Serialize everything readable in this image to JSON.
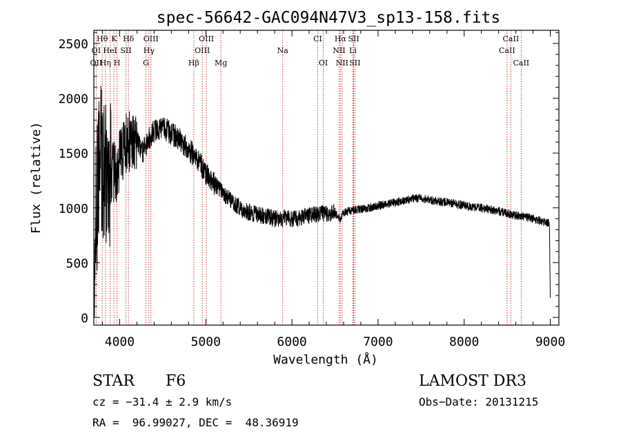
{
  "chart_data": {
    "type": "line",
    "title": "spec-56642-GAC094N47V3_sp13-158.fits",
    "xlabel": "Wavelength (Å)",
    "ylabel": "Flux (relative)",
    "xlim": [
      3700,
      9100
    ],
    "ylim": [
      -70,
      2620
    ],
    "x_ticks": [
      4000,
      5000,
      6000,
      7000,
      8000,
      9000
    ],
    "x_tick_labels": [
      "4000",
      "5000",
      "6000",
      "7000",
      "8000",
      "9000"
    ],
    "y_ticks": [
      0,
      500,
      1000,
      1500,
      2000,
      2500
    ],
    "y_tick_labels": [
      "0",
      "500",
      "1000",
      "1500",
      "2000",
      "2500"
    ],
    "line_color": "#000000",
    "marker_color": "#b22222",
    "spectrum_anchors": [
      [
        3700,
        50
      ],
      [
        3720,
        800
      ],
      [
        3750,
        1300
      ],
      [
        3780,
        1450
      ],
      [
        3800,
        1350
      ],
      [
        3850,
        1300
      ],
      [
        3900,
        1350
      ],
      [
        3950,
        1300
      ],
      [
        4000,
        1450
      ],
      [
        4050,
        1550
      ],
      [
        4100,
        1620
      ],
      [
        4150,
        1640
      ],
      [
        4200,
        1640
      ],
      [
        4260,
        1500
      ],
      [
        4300,
        1560
      ],
      [
        4350,
        1640
      ],
      [
        4400,
        1700
      ],
      [
        4500,
        1740
      ],
      [
        4600,
        1680
      ],
      [
        4700,
        1620
      ],
      [
        4800,
        1540
      ],
      [
        4900,
        1440
      ],
      [
        5000,
        1320
      ],
      [
        5100,
        1220
      ],
      [
        5200,
        1130
      ],
      [
        5300,
        1060
      ],
      [
        5400,
        1000
      ],
      [
        5500,
        960
      ],
      [
        5600,
        940
      ],
      [
        5700,
        920
      ],
      [
        5800,
        900
      ],
      [
        5900,
        910
      ],
      [
        6000,
        900
      ],
      [
        6100,
        910
      ],
      [
        6200,
        930
      ],
      [
        6300,
        940
      ],
      [
        6400,
        950
      ],
      [
        6500,
        960
      ],
      [
        6560,
        900
      ],
      [
        6600,
        960
      ],
      [
        6700,
        980
      ],
      [
        6800,
        990
      ],
      [
        6900,
        1000
      ],
      [
        7000,
        1020
      ],
      [
        7200,
        1050
      ],
      [
        7400,
        1080
      ],
      [
        7500,
        1090
      ],
      [
        7600,
        1070
      ],
      [
        7800,
        1050
      ],
      [
        8000,
        1020
      ],
      [
        8200,
        1000
      ],
      [
        8400,
        970
      ],
      [
        8500,
        950
      ],
      [
        8600,
        930
      ],
      [
        8700,
        920
      ],
      [
        8800,
        900
      ],
      [
        8900,
        880
      ],
      [
        8990,
        860
      ],
      [
        9000,
        200
      ]
    ],
    "spectral_lines": [
      {
        "label": "Hθ",
        "wavelength": 3797,
        "row": 0
      },
      {
        "label": "K",
        "wavelength": 3934,
        "row": 0
      },
      {
        "label": "Hδ",
        "wavelength": 4102,
        "row": 0
      },
      {
        "label": "OIII",
        "wavelength": 4363,
        "row": 0
      },
      {
        "label": "OIII",
        "wavelength": 5007,
        "row": 0
      },
      {
        "label": "CI",
        "wavelength": 6300,
        "row": 0
      },
      {
        "label": "Hα",
        "wavelength": 6563,
        "row": 0
      },
      {
        "label": "SII",
        "wavelength": 6717,
        "row": 0
      },
      {
        "label": "CaII",
        "wavelength": 8542,
        "row": 0
      },
      {
        "label": "OI",
        "wavelength": 3727,
        "row": 1
      },
      {
        "label": "HeI",
        "wavelength": 3889,
        "row": 1
      },
      {
        "label": "SII",
        "wavelength": 4072,
        "row": 1
      },
      {
        "label": "Hγ",
        "wavelength": 4340,
        "row": 1
      },
      {
        "label": "OIII",
        "wavelength": 4959,
        "row": 1
      },
      {
        "label": "Na",
        "wavelength": 5893,
        "row": 1
      },
      {
        "label": "NII",
        "wavelength": 6548,
        "row": 1
      },
      {
        "label": "Li",
        "wavelength": 6708,
        "row": 1
      },
      {
        "label": "CaII",
        "wavelength": 8498,
        "row": 1
      },
      {
        "label": "OII",
        "wavelength": 3727,
        "row": 2
      },
      {
        "label": "Hη",
        "wavelength": 3835,
        "row": 2
      },
      {
        "label": "H",
        "wavelength": 3969,
        "row": 2
      },
      {
        "label": "G",
        "wavelength": 4305,
        "row": 2
      },
      {
        "label": "Hβ",
        "wavelength": 4861,
        "row": 2
      },
      {
        "label": "Mg",
        "wavelength": 5175,
        "row": 2
      },
      {
        "label": "OI",
        "wavelength": 6364,
        "row": 2
      },
      {
        "label": "NII",
        "wavelength": 6583,
        "row": 2
      },
      {
        "label": "SII",
        "wavelength": 6731,
        "row": 2
      },
      {
        "label": "CaII",
        "wavelength": 8662,
        "row": 2
      }
    ]
  },
  "info": {
    "object_class": "STAR",
    "subclass": "F6",
    "survey": "LAMOST DR3",
    "redshift_text": "cz = −31.4 ± 2.9 km/s",
    "obs_date_text": "Obs−Date: 20131215",
    "coords_text": "RA =  96.99027, DEC =  48.36919"
  }
}
